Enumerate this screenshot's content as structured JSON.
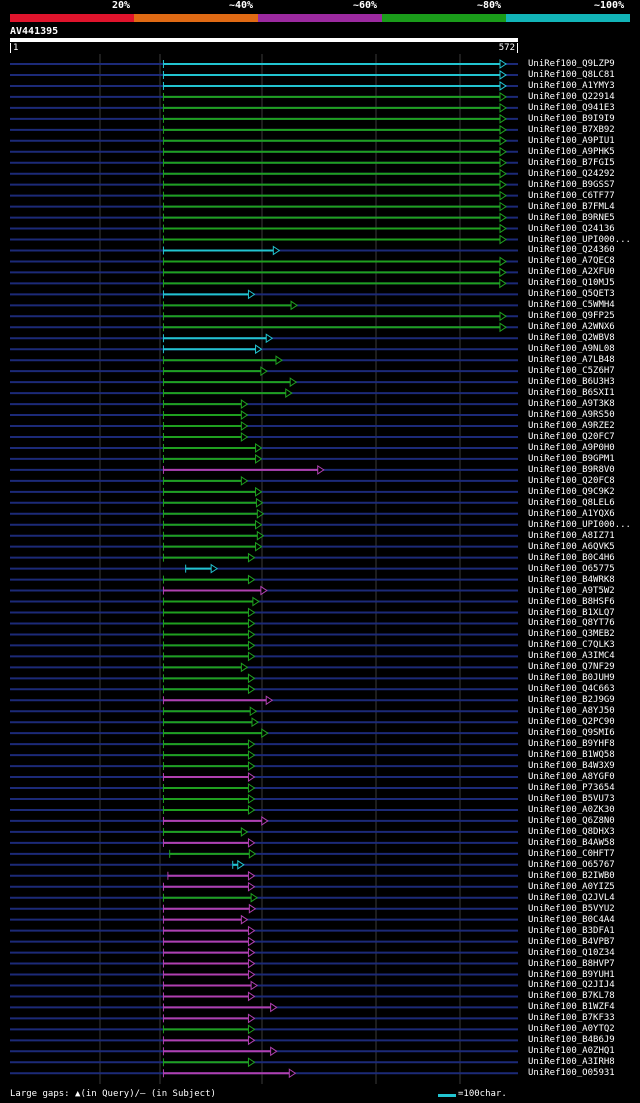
{
  "legend": {
    "colors": [
      "#e0142c",
      "#e06a14",
      "#9c2aa0",
      "#1a9c1a",
      "#12b4b8"
    ],
    "labels": [
      "20%",
      "~40%",
      "~60%",
      "~80%",
      "~100%"
    ]
  },
  "query": {
    "name": "AV441395",
    "start": "1",
    "end": "572"
  },
  "hits": [
    {
      "name": "UniRef100_Q9LZP9",
      "color": "cyan"
    },
    {
      "name": "UniRef100_Q8LC81",
      "color": "cyan"
    },
    {
      "name": "UniRef100_A1YMY3",
      "color": "cyan"
    },
    {
      "name": "UniRef100_Q22914",
      "color": "green"
    },
    {
      "name": "UniRef100_Q941E3",
      "color": "green"
    },
    {
      "name": "UniRef100_B9I9I9",
      "color": "green"
    },
    {
      "name": "UniRef100_B7XB92",
      "color": "green"
    },
    {
      "name": "UniRef100_A9PIU1",
      "color": "green"
    },
    {
      "name": "UniRef100_A9PHK5",
      "color": "green"
    },
    {
      "name": "UniRef100_B7FGI5",
      "color": "green"
    },
    {
      "name": "UniRef100_Q24292",
      "color": "green"
    },
    {
      "name": "UniRef100_B9GSS7",
      "color": "green"
    },
    {
      "name": "UniRef100_C6TF77",
      "color": "green"
    },
    {
      "name": "UniRef100_B7FML4",
      "color": "green"
    },
    {
      "name": "UniRef100_B9RNE5",
      "color": "green"
    },
    {
      "name": "UniRef100_Q24136",
      "color": "green"
    },
    {
      "name": "UniRef100_UPI000...",
      "color": "green"
    },
    {
      "name": "UniRef100_Q24360",
      "color": "cyan"
    },
    {
      "name": "UniRef100_A7QEC8",
      "color": "green"
    },
    {
      "name": "UniRef100_A2XFU0",
      "color": "green"
    },
    {
      "name": "UniRef100_Q10MJ5",
      "color": "green"
    },
    {
      "name": "UniRef100_Q5QET3",
      "color": "cyan"
    },
    {
      "name": "UniRef100_C5WMH4",
      "color": "green"
    },
    {
      "name": "UniRef100_Q9FP25",
      "color": "green"
    },
    {
      "name": "UniRef100_A2WNX6",
      "color": "green"
    },
    {
      "name": "UniRef100_Q2WBV8",
      "color": "cyan"
    },
    {
      "name": "UniRef100_A9NL08",
      "color": "cyan"
    },
    {
      "name": "UniRef100_A7LB48",
      "color": "green"
    },
    {
      "name": "UniRef100_C5Z6H7",
      "color": "green"
    },
    {
      "name": "UniRef100_B6U3H3",
      "color": "green"
    },
    {
      "name": "UniRef100_B6SXI1",
      "color": "green"
    },
    {
      "name": "UniRef100_A9T3K8",
      "color": "green"
    },
    {
      "name": "UniRef100_A9RS50",
      "color": "green"
    },
    {
      "name": "UniRef100_A9RZE2",
      "color": "green"
    },
    {
      "name": "UniRef100_Q20FC7",
      "color": "green"
    },
    {
      "name": "UniRef100_A9P0H0",
      "color": "green"
    },
    {
      "name": "UniRef100_B9GPM1",
      "color": "green"
    },
    {
      "name": "UniRef100_B9R8V0",
      "color": "purple"
    },
    {
      "name": "UniRef100_Q20FC8",
      "color": "green"
    },
    {
      "name": "UniRef100_Q9C9K2",
      "color": "green"
    },
    {
      "name": "UniRef100_Q8LEL6",
      "color": "green"
    },
    {
      "name": "UniRef100_A1YQX6",
      "color": "green"
    },
    {
      "name": "UniRef100_UPI000...",
      "color": "green"
    },
    {
      "name": "UniRef100_A8IZ71",
      "color": "green"
    },
    {
      "name": "UniRef100_A6QVK5",
      "color": "green"
    },
    {
      "name": "UniRef100_B0C4H6",
      "color": "green"
    },
    {
      "name": "UniRef100_O65775",
      "color": "cyan"
    },
    {
      "name": "UniRef100_B4WRK8",
      "color": "green"
    },
    {
      "name": "UniRef100_A9T5W2",
      "color": "purple"
    },
    {
      "name": "UniRef100_B8HSF6",
      "color": "green"
    },
    {
      "name": "UniRef100_B1XLQ7",
      "color": "green"
    },
    {
      "name": "UniRef100_Q8YT76",
      "color": "green"
    },
    {
      "name": "UniRef100_Q3MEB2",
      "color": "green"
    },
    {
      "name": "UniRef100_C7QLK3",
      "color": "green"
    },
    {
      "name": "UniRef100_A3IMC4",
      "color": "green"
    },
    {
      "name": "UniRef100_Q7NF29",
      "color": "green"
    },
    {
      "name": "UniRef100_B0JUH9",
      "color": "green"
    },
    {
      "name": "UniRef100_Q4C663",
      "color": "green"
    },
    {
      "name": "UniRef100_B2J9G9",
      "color": "purple"
    },
    {
      "name": "UniRef100_A8YJ50",
      "color": "green"
    },
    {
      "name": "UniRef100_Q2PC90",
      "color": "green"
    },
    {
      "name": "UniRef100_Q9SMI6",
      "color": "green"
    },
    {
      "name": "UniRef100_B9YHF8",
      "color": "green"
    },
    {
      "name": "UniRef100_B1WQ58",
      "color": "green"
    },
    {
      "name": "UniRef100_B4W3X9",
      "color": "green"
    },
    {
      "name": "UniRef100_A8YGF0",
      "color": "purple"
    },
    {
      "name": "UniRef100_P73654",
      "color": "green"
    },
    {
      "name": "UniRef100_B5VU73",
      "color": "green"
    },
    {
      "name": "UniRef100_A0ZK30",
      "color": "green"
    },
    {
      "name": "UniRef100_Q6Z8N0",
      "color": "purple"
    },
    {
      "name": "UniRef100_Q8DHX3",
      "color": "green"
    },
    {
      "name": "UniRef100_B4AW58",
      "color": "purple"
    },
    {
      "name": "UniRef100_C0HFT7",
      "color": "green"
    },
    {
      "name": "UniRef100_O65767",
      "color": "cyan"
    },
    {
      "name": "UniRef100_B2IWB0",
      "color": "purple"
    },
    {
      "name": "UniRef100_A0YIZ5",
      "color": "purple"
    },
    {
      "name": "UniRef100_Q2JVL4",
      "color": "green"
    },
    {
      "name": "UniRef100_B5VYU2",
      "color": "purple"
    },
    {
      "name": "UniRef100_B0C4A4",
      "color": "purple"
    },
    {
      "name": "UniRef100_B3DFA1",
      "color": "purple"
    },
    {
      "name": "UniRef100_B4VPB7",
      "color": "purple"
    },
    {
      "name": "UniRef100_Q10Z34",
      "color": "purple"
    },
    {
      "name": "UniRef100_B8HVP7",
      "color": "purple"
    },
    {
      "name": "UniRef100_B9YUH1",
      "color": "purple"
    },
    {
      "name": "UniRef100_Q2JIJ4",
      "color": "purple"
    },
    {
      "name": "UniRef100_B7KL78",
      "color": "purple"
    },
    {
      "name": "UniRef100_B1WZF4",
      "color": "purple"
    },
    {
      "name": "UniRef100_B7KF33",
      "color": "purple"
    },
    {
      "name": "UniRef100_A0YTQ2",
      "color": "green"
    },
    {
      "name": "UniRef100_B4B6J9",
      "color": "purple"
    },
    {
      "name": "UniRef100_A0ZHQ1",
      "color": "purple"
    },
    {
      "name": "UniRef100_A3IRH8",
      "color": "green"
    },
    {
      "name": "UniRef100_O05931",
      "color": "purple"
    }
  ],
  "colors": {
    "cyan": "#22c4d0",
    "green": "#1fa01f",
    "purple": "#b040b0",
    "blue": "#1c2a78",
    "grid": "#3a3a3a"
  },
  "footer": {
    "gaps_label": "Large gaps: ▲(in Query)/– (in Subject)",
    "scale_label": "=100char."
  }
}
